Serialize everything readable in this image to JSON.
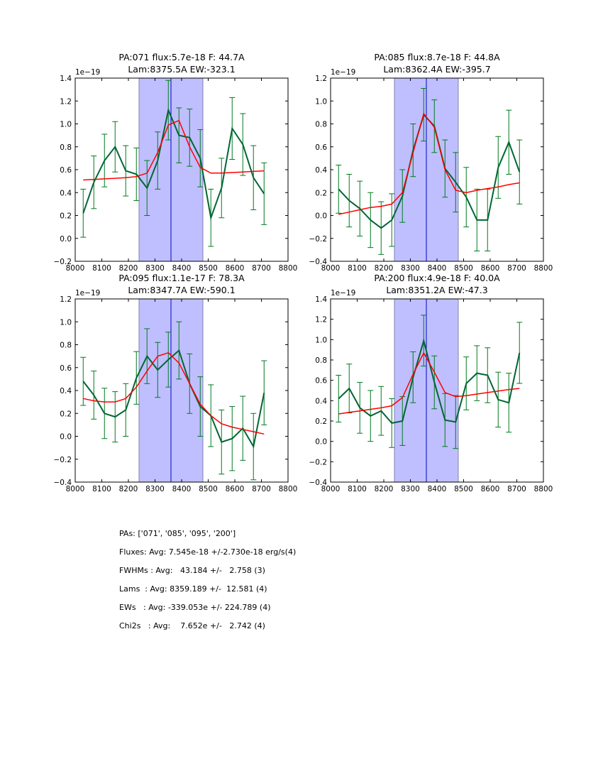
{
  "chart_data": [
    {
      "type": "line",
      "title_line1": "PA:071 flux:5.7e-18 F: 44.7A",
      "title_line2": "Lam:8375.5A EW:-323.1",
      "offset_label": "1e−19",
      "xlim": [
        8000,
        8800
      ],
      "ylim": [
        -0.2,
        1.4
      ],
      "xticks": [
        8000,
        8100,
        8200,
        8300,
        8400,
        8500,
        8600,
        8700,
        8800
      ],
      "yticks": [
        -0.2,
        0.0,
        0.2,
        0.4,
        0.6,
        0.8,
        1.0,
        1.2,
        1.4
      ],
      "shaded_region": [
        8240,
        8480
      ],
      "center_line": 8360,
      "x": [
        8030,
        8070,
        8110,
        8150,
        8190,
        8230,
        8270,
        8310,
        8350,
        8390,
        8430,
        8470,
        8510,
        8550,
        8590,
        8630,
        8670,
        8710
      ],
      "series": [
        {
          "name": "data",
          "color": "#006633",
          "values": [
            0.22,
            0.49,
            0.68,
            0.8,
            0.59,
            0.56,
            0.44,
            0.68,
            1.12,
            0.9,
            0.88,
            0.7,
            0.18,
            0.44,
            0.96,
            0.82,
            0.53,
            0.39
          ],
          "errors": [
            0.21,
            0.23,
            0.23,
            0.22,
            0.22,
            0.23,
            0.24,
            0.25,
            0.26,
            0.24,
            0.25,
            0.25,
            0.25,
            0.26,
            0.27,
            0.27,
            0.28,
            0.27
          ]
        },
        {
          "name": "fit",
          "color": "#ff0000",
          "values": [
            0.51,
            0.515,
            0.52,
            0.525,
            0.53,
            0.54,
            0.57,
            0.75,
            0.99,
            1.03,
            0.8,
            0.62,
            0.57,
            0.57,
            0.575,
            0.58,
            0.585,
            0.59
          ]
        }
      ]
    },
    {
      "type": "line",
      "title_line1": "PA:085 flux:8.7e-18 F: 44.8A",
      "title_line2": "Lam:8362.4A EW:-395.7",
      "offset_label": "1e−19",
      "xlim": [
        8000,
        8800
      ],
      "ylim": [
        -0.4,
        1.2
      ],
      "xticks": [
        8000,
        8100,
        8200,
        8300,
        8400,
        8500,
        8600,
        8700,
        8800
      ],
      "yticks": [
        -0.4,
        -0.2,
        0.0,
        0.2,
        0.4,
        0.6,
        0.8,
        1.0,
        1.2
      ],
      "shaded_region": [
        8240,
        8480
      ],
      "center_line": 8360,
      "x": [
        8030,
        8070,
        8110,
        8150,
        8190,
        8230,
        8270,
        8310,
        8350,
        8390,
        8430,
        8470,
        8510,
        8550,
        8590,
        8630,
        8670,
        8710
      ],
      "series": [
        {
          "name": "data",
          "color": "#006633",
          "values": [
            0.23,
            0.13,
            0.06,
            -0.04,
            -0.11,
            -0.04,
            0.17,
            0.57,
            0.88,
            0.78,
            0.41,
            0.29,
            0.16,
            -0.04,
            -0.04,
            0.42,
            0.64,
            0.38
          ],
          "errors": [
            0.21,
            0.23,
            0.24,
            0.24,
            0.23,
            0.23,
            0.23,
            0.23,
            0.23,
            0.23,
            0.25,
            0.26,
            0.26,
            0.27,
            0.27,
            0.27,
            0.28,
            0.28
          ]
        },
        {
          "name": "fit",
          "color": "#ff0000",
          "values": [
            0.01,
            0.03,
            0.05,
            0.07,
            0.08,
            0.1,
            0.2,
            0.55,
            0.89,
            0.77,
            0.4,
            0.22,
            0.2,
            0.22,
            0.235,
            0.25,
            0.27,
            0.285
          ]
        }
      ]
    },
    {
      "type": "line",
      "title_line1": "PA:095 flux:1.1e-17 F: 78.3A",
      "title_line2": "Lam:8347.7A EW:-590.1",
      "offset_label": "1e−19",
      "xlim": [
        8000,
        8800
      ],
      "ylim": [
        -0.4,
        1.2
      ],
      "xticks": [
        8000,
        8100,
        8200,
        8300,
        8400,
        8500,
        8600,
        8700,
        8800
      ],
      "yticks": [
        -0.4,
        -0.2,
        0.0,
        0.2,
        0.4,
        0.6,
        0.8,
        1.0,
        1.2
      ],
      "shaded_region": [
        8240,
        8480
      ],
      "center_line": 8360,
      "x": [
        8030,
        8070,
        8110,
        8150,
        8190,
        8230,
        8270,
        8310,
        8350,
        8390,
        8430,
        8470,
        8510,
        8550,
        8590,
        8630,
        8670,
        8710
      ],
      "series": [
        {
          "name": "data",
          "color": "#006633",
          "values": [
            0.48,
            0.36,
            0.2,
            0.17,
            0.23,
            0.51,
            0.7,
            0.58,
            0.67,
            0.75,
            0.46,
            0.26,
            0.18,
            -0.05,
            -0.02,
            0.07,
            -0.09,
            0.38
          ],
          "errors": [
            0.21,
            0.21,
            0.22,
            0.22,
            0.23,
            0.23,
            0.24,
            0.24,
            0.24,
            0.25,
            0.26,
            0.26,
            0.27,
            0.28,
            0.28,
            0.28,
            0.29,
            0.28
          ]
        },
        {
          "name": "fit",
          "color": "#ff0000",
          "values": [
            0.33,
            0.31,
            0.3,
            0.3,
            0.33,
            0.43,
            0.57,
            0.7,
            0.73,
            0.64,
            0.46,
            0.28,
            0.18,
            0.11,
            0.08,
            0.06,
            0.04,
            0.02
          ]
        }
      ]
    },
    {
      "type": "line",
      "title_line1": "PA:200 flux:4.9e-18 F: 40.0A",
      "title_line2": "Lam:8351.2A EW:-47.3",
      "offset_label": "1e−19",
      "xlim": [
        8000,
        8800
      ],
      "ylim": [
        -0.4,
        1.4
      ],
      "xticks": [
        8000,
        8100,
        8200,
        8300,
        8400,
        8500,
        8600,
        8700,
        8800
      ],
      "yticks": [
        -0.4,
        -0.2,
        0.0,
        0.2,
        0.4,
        0.6,
        0.8,
        1.0,
        1.2,
        1.4
      ],
      "shaded_region": [
        8240,
        8480
      ],
      "center_line": 8360,
      "x": [
        8030,
        8070,
        8110,
        8150,
        8190,
        8230,
        8270,
        8310,
        8350,
        8390,
        8430,
        8470,
        8510,
        8550,
        8590,
        8630,
        8670,
        8710
      ],
      "series": [
        {
          "name": "data",
          "color": "#006633",
          "values": [
            0.42,
            0.52,
            0.33,
            0.25,
            0.3,
            0.18,
            0.2,
            0.63,
            0.99,
            0.58,
            0.21,
            0.19,
            0.57,
            0.67,
            0.65,
            0.41,
            0.38,
            0.87
          ],
          "errors": [
            0.23,
            0.24,
            0.25,
            0.25,
            0.24,
            0.24,
            0.24,
            0.25,
            0.25,
            0.26,
            0.26,
            0.26,
            0.26,
            0.27,
            0.27,
            0.27,
            0.29,
            0.3
          ]
        },
        {
          "name": "fit",
          "color": "#ff0000",
          "values": [
            0.27,
            0.285,
            0.3,
            0.315,
            0.33,
            0.35,
            0.43,
            0.66,
            0.87,
            0.68,
            0.48,
            0.44,
            0.45,
            0.465,
            0.48,
            0.495,
            0.51,
            0.52
          ]
        }
      ]
    }
  ],
  "stats": {
    "pas": "PAs: ['071', '085', '095', '200']",
    "fluxes": "Fluxes: Avg: 7.545e-18 +/-2.730e-18 erg/s(4)",
    "fwhms": "FWHMs : Avg:   43.184 +/-   2.758 (3)",
    "lams": "Lams  : Avg: 8359.189 +/-  12.581 (4)",
    "ews": "EWs   : Avg: -339.053e +/- 224.789 (4)",
    "chi2s": "Chi2s   : Avg:    7.652e +/-   2.742 (4)"
  },
  "colors": {
    "shade_fill": "#bfbfff",
    "shade_edge": "#8080b0",
    "center_line": "#0000cc"
  }
}
